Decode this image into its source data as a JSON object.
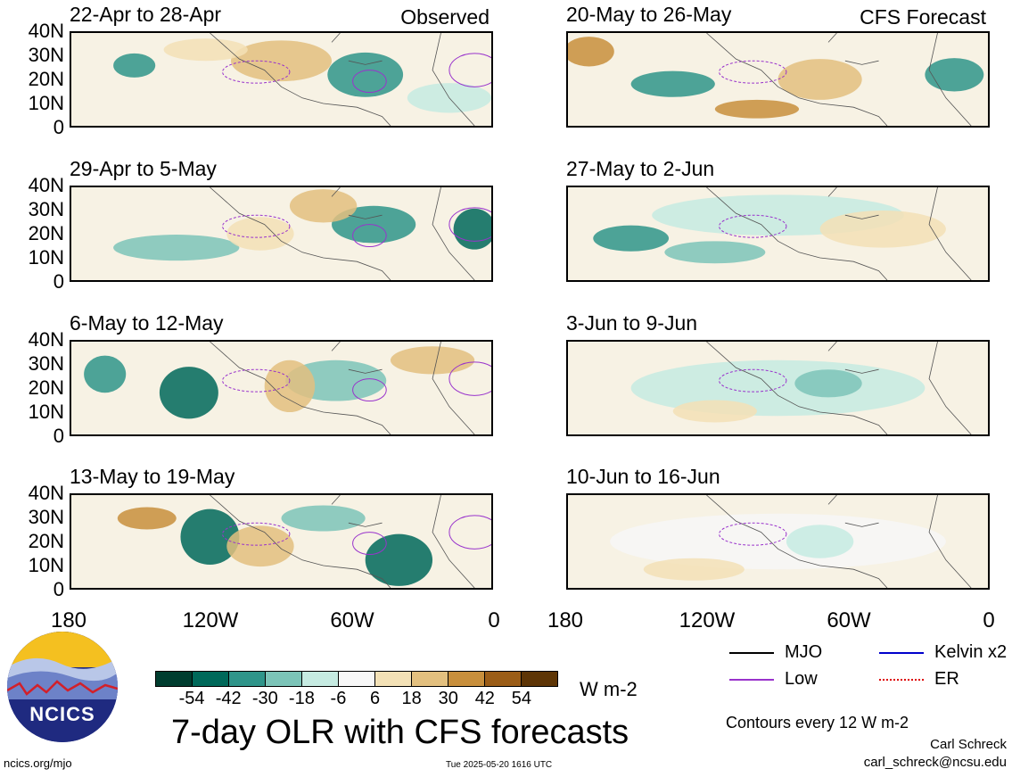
{
  "panels": [
    {
      "title": "22-Apr to 28-Apr",
      "tag": "Observed"
    },
    {
      "title": "20-May to 26-May",
      "tag": "CFS Forecast"
    },
    {
      "title": "29-Apr to 5-May",
      "tag": ""
    },
    {
      "title": "27-May to 2-Jun",
      "tag": ""
    },
    {
      "title": "6-May to 12-May",
      "tag": ""
    },
    {
      "title": "3-Jun to 9-Jun",
      "tag": ""
    },
    {
      "title": "13-May to 19-May",
      "tag": ""
    },
    {
      "title": "10-Jun to 16-Jun",
      "tag": ""
    }
  ],
  "lat_labels": [
    "40N",
    "30N",
    "20N",
    "10N",
    "0"
  ],
  "lon_labels": [
    "180",
    "120W",
    "60W",
    "0"
  ],
  "colorbar": {
    "colors": [
      "#003d2f",
      "#00695a",
      "#2f958a",
      "#7cc4b8",
      "#c6ebe2",
      "#f7f7f7",
      "#f3e1b6",
      "#e3c07f",
      "#c88f3c",
      "#9b5d17",
      "#5e3506"
    ],
    "labels": [
      "-54",
      "-42",
      "-30",
      "-18",
      "-6",
      "6",
      "18",
      "30",
      "42",
      "54"
    ],
    "units": "W m-2"
  },
  "main_title": "7-day OLR with CFS forecasts",
  "legend": [
    {
      "label": "MJO",
      "color": "#000000"
    },
    {
      "label": "Kelvin x2",
      "color": "#0000cc"
    },
    {
      "label": "Low",
      "color": "#9933cc"
    },
    {
      "label": "ER",
      "color": "#dd0000"
    }
  ],
  "contour_note": "Contours every 12 W m-2",
  "author": "Carl Schreck",
  "email": "carl_schreck@ncsu.edu",
  "site": "ncics.org/mjo",
  "timestamp": "Tue 2025-05-20 1616 UTC",
  "logo": {
    "text": "NCICS",
    "icon": "ncics-logo-icon"
  }
}
